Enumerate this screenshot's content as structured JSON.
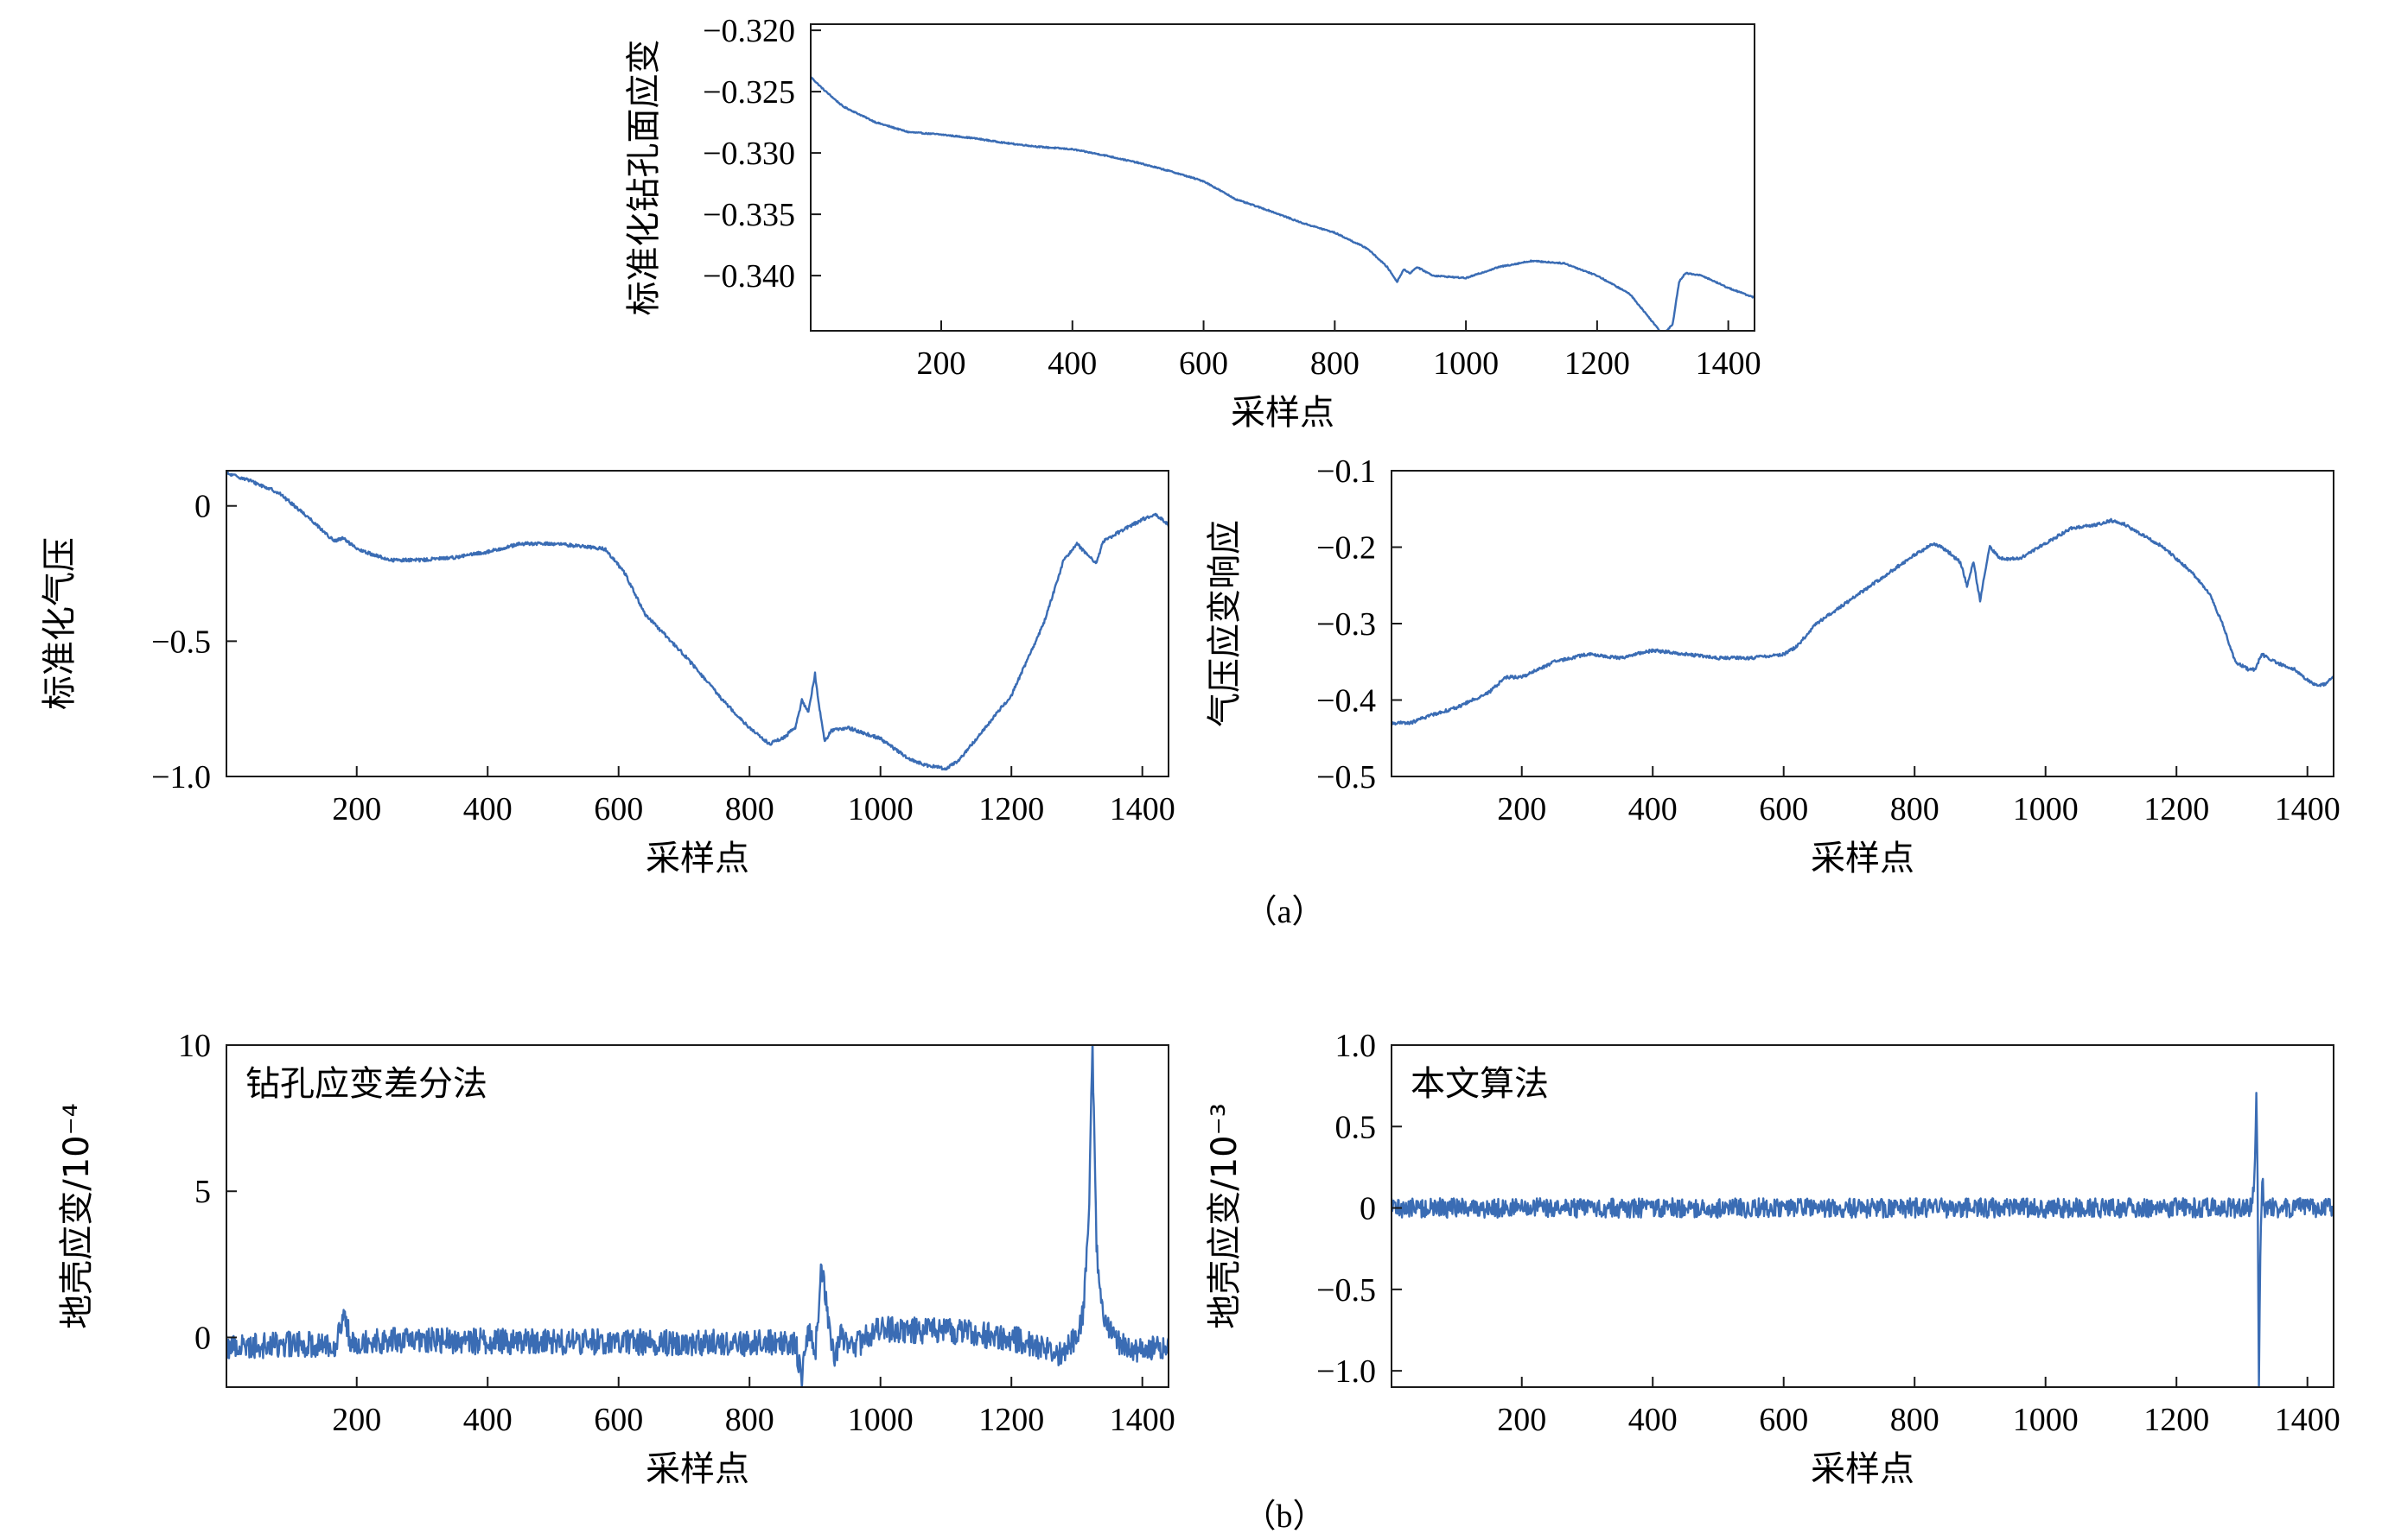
{
  "figure": {
    "panel_labels": [
      "（a）",
      "（b）"
    ]
  },
  "line_color": "#3a6cb4",
  "chart_data": [
    {
      "id": "c1",
      "type": "line",
      "xlabel": "采样点",
      "ylabel": "标准化钻孔面应变",
      "xlim": [
        1,
        1440
      ],
      "ylim": [
        -0.3445,
        -0.3195
      ],
      "xticks": [
        200,
        400,
        600,
        800,
        1000,
        1200,
        1400
      ],
      "yticks": [
        -0.34,
        -0.335,
        -0.33,
        -0.325,
        -0.32
      ],
      "ytick_labels": [
        "−0.340",
        "−0.335",
        "−0.330",
        "−0.325",
        "−0.320"
      ],
      "noise": 5e-05,
      "x": [
        1,
        20,
        50,
        100,
        150,
        200,
        250,
        300,
        350,
        400,
        450,
        500,
        550,
        600,
        650,
        700,
        750,
        800,
        850,
        880,
        895,
        905,
        915,
        925,
        950,
        1000,
        1050,
        1100,
        1150,
        1200,
        1250,
        1285,
        1300,
        1315,
        1325,
        1335,
        1360,
        1400,
        1440
      ],
      "y": [
        -0.3238,
        -0.3248,
        -0.3262,
        -0.3275,
        -0.3283,
        -0.3285,
        -0.3288,
        -0.3292,
        -0.3295,
        -0.3297,
        -0.3302,
        -0.3308,
        -0.3315,
        -0.3323,
        -0.3338,
        -0.3347,
        -0.3357,
        -0.3365,
        -0.3378,
        -0.3393,
        -0.3405,
        -0.3395,
        -0.3398,
        -0.3393,
        -0.34,
        -0.3402,
        -0.3393,
        -0.3388,
        -0.339,
        -0.34,
        -0.3415,
        -0.3438,
        -0.3448,
        -0.344,
        -0.3405,
        -0.3398,
        -0.34,
        -0.341,
        -0.3418
      ]
    },
    {
      "id": "c2",
      "type": "line",
      "xlabel": "采样点",
      "ylabel": "标准化气压",
      "xlim": [
        1,
        1440
      ],
      "ylim": [
        -1.0,
        0.13
      ],
      "xticks": [
        200,
        400,
        600,
        800,
        1000,
        1200,
        1400
      ],
      "yticks": [
        -1.0,
        -0.5,
        0
      ],
      "ytick_labels": [
        "−1.0",
        "−0.5",
        "0"
      ],
      "noise": 0.006,
      "x": [
        1,
        30,
        80,
        130,
        165,
        180,
        200,
        250,
        300,
        350,
        400,
        450,
        500,
        550,
        580,
        610,
        640,
        700,
        760,
        800,
        830,
        850,
        870,
        880,
        890,
        900,
        905,
        915,
        925,
        950,
        1000,
        1040,
        1070,
        1100,
        1120,
        1150,
        1200,
        1250,
        1280,
        1300,
        1320,
        1330,
        1340,
        1370,
        1400,
        1420,
        1440
      ],
      "y": [
        0.12,
        0.1,
        0.05,
        -0.05,
        -0.13,
        -0.12,
        -0.16,
        -0.2,
        -0.2,
        -0.19,
        -0.17,
        -0.14,
        -0.14,
        -0.15,
        -0.16,
        -0.25,
        -0.4,
        -0.55,
        -0.72,
        -0.82,
        -0.88,
        -0.86,
        -0.82,
        -0.72,
        -0.76,
        -0.62,
        -0.72,
        -0.87,
        -0.83,
        -0.82,
        -0.86,
        -0.93,
        -0.96,
        -0.97,
        -0.94,
        -0.85,
        -0.7,
        -0.43,
        -0.2,
        -0.14,
        -0.19,
        -0.21,
        -0.13,
        -0.09,
        -0.05,
        -0.03,
        -0.07
      ]
    },
    {
      "id": "c3",
      "type": "line",
      "xlabel": "采样点",
      "ylabel": "气压应变响应",
      "xlim": [
        1,
        1440
      ],
      "ylim": [
        -0.5,
        -0.1
      ],
      "xticks": [
        200,
        400,
        600,
        800,
        1000,
        1200,
        1400
      ],
      "yticks": [
        -0.5,
        -0.4,
        -0.3,
        -0.2,
        -0.1
      ],
      "ytick_labels": [
        "−0.5",
        "−0.4",
        "−0.3",
        "−0.2",
        "−0.1"
      ],
      "noise": 0.002,
      "x": [
        1,
        30,
        60,
        100,
        150,
        175,
        200,
        250,
        300,
        350,
        400,
        450,
        500,
        550,
        600,
        620,
        650,
        700,
        750,
        800,
        830,
        850,
        870,
        880,
        890,
        900,
        910,
        915,
        930,
        960,
        1000,
        1040,
        1080,
        1100,
        1120,
        1140,
        1180,
        1220,
        1250,
        1270,
        1290,
        1310,
        1320,
        1330,
        1350,
        1380,
        1410,
        1425,
        1440
      ],
      "y": [
        -0.43,
        -0.43,
        -0.42,
        -0.41,
        -0.39,
        -0.37,
        -0.37,
        -0.35,
        -0.34,
        -0.345,
        -0.335,
        -0.34,
        -0.345,
        -0.345,
        -0.34,
        -0.33,
        -0.3,
        -0.27,
        -0.24,
        -0.21,
        -0.195,
        -0.205,
        -0.22,
        -0.25,
        -0.22,
        -0.27,
        -0.22,
        -0.2,
        -0.215,
        -0.215,
        -0.195,
        -0.175,
        -0.17,
        -0.165,
        -0.17,
        -0.18,
        -0.2,
        -0.23,
        -0.26,
        -0.3,
        -0.35,
        -0.36,
        -0.36,
        -0.34,
        -0.35,
        -0.36,
        -0.38,
        -0.38,
        -0.37
      ]
    },
    {
      "id": "c4",
      "type": "line",
      "xlabel": "采样点",
      "ylabel": "地壳应变/10⁻⁴",
      "annotation": "钻孔应变差分法",
      "xlim": [
        1,
        1440
      ],
      "ylim": [
        -1.7,
        10
      ],
      "xticks": [
        200,
        400,
        600,
        800,
        1000,
        1200,
        1400
      ],
      "yticks": [
        0,
        5,
        10
      ],
      "ytick_labels": [
        "0",
        "5",
        "10"
      ],
      "noise": 0.45,
      "x": [
        1,
        170,
        180,
        190,
        870,
        880,
        890,
        900,
        910,
        920,
        930,
        940,
        960,
        1000,
        1100,
        1200,
        1280,
        1300,
        1310,
        1318,
        1324,
        1330,
        1340,
        1360,
        1400,
        1440
      ],
      "y": [
        -0.3,
        -0.2,
        0.8,
        -0.1,
        -0.2,
        -1.3,
        0.4,
        -0.6,
        2.4,
        0.7,
        -0.8,
        0.1,
        -0.3,
        0.3,
        0.2,
        0.0,
        -0.6,
        0.1,
        0.8,
        4.0,
        10.0,
        3.0,
        0.6,
        -0.2,
        -0.5,
        -0.2
      ]
    },
    {
      "id": "c5",
      "type": "line",
      "xlabel": "采样点",
      "ylabel": "地壳应变/10⁻³",
      "annotation": "本文算法",
      "xlim": [
        1,
        1440
      ],
      "ylim": [
        -1.1,
        1.0
      ],
      "xticks": [
        200,
        400,
        600,
        800,
        1000,
        1200,
        1400
      ],
      "yticks": [
        -1.0,
        -0.5,
        0,
        0.5,
        1.0
      ],
      "ytick_labels": [
        "−1.0",
        "−0.5",
        "0",
        "0.5",
        "1.0"
      ],
      "noise": 0.06,
      "x": [
        1,
        1316,
        1320,
        1322,
        1324,
        1326,
        1328,
        1331,
        1334,
        1440
      ],
      "y": [
        0.0,
        0.0,
        0.3,
        0.72,
        0.1,
        -1.1,
        -0.3,
        0.2,
        0.0,
        0.0
      ]
    }
  ]
}
